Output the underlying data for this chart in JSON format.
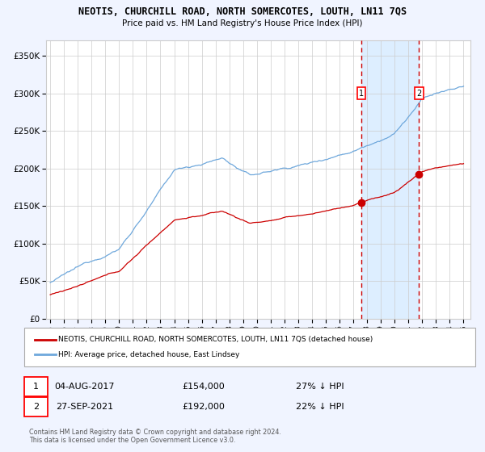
{
  "title": "NEOTIS, CHURCHILL ROAD, NORTH SOMERCOTES, LOUTH, LN11 7QS",
  "subtitle": "Price paid vs. HM Land Registry's House Price Index (HPI)",
  "legend_line1": "NEOTIS, CHURCHILL ROAD, NORTH SOMERCOTES, LOUTH, LN11 7QS (detached house)",
  "legend_line2": "HPI: Average price, detached house, East Lindsey",
  "annotation1_label": "1",
  "annotation1_date": "04-AUG-2017",
  "annotation1_price": "£154,000",
  "annotation1_hpi": "27% ↓ HPI",
  "annotation1_year": 2017.58,
  "annotation1_value": 154000,
  "annotation2_label": "2",
  "annotation2_date": "27-SEP-2021",
  "annotation2_price": "£192,000",
  "annotation2_hpi": "22% ↓ HPI",
  "annotation2_year": 2021.75,
  "annotation2_value": 192000,
  "footnote": "Contains HM Land Registry data © Crown copyright and database right 2024.\nThis data is licensed under the Open Government Licence v3.0.",
  "ylim": [
    0,
    370000
  ],
  "yticks": [
    0,
    50000,
    100000,
    150000,
    200000,
    250000,
    300000,
    350000
  ],
  "hpi_color": "#6fa8dc",
  "price_color": "#cc0000",
  "vline_color": "#cc0000",
  "shade_color": "#ddeeff",
  "background_color": "#f0f4ff",
  "plot_bg_color": "#ffffff",
  "grid_color": "#cccccc",
  "marker_color": "#cc0000"
}
